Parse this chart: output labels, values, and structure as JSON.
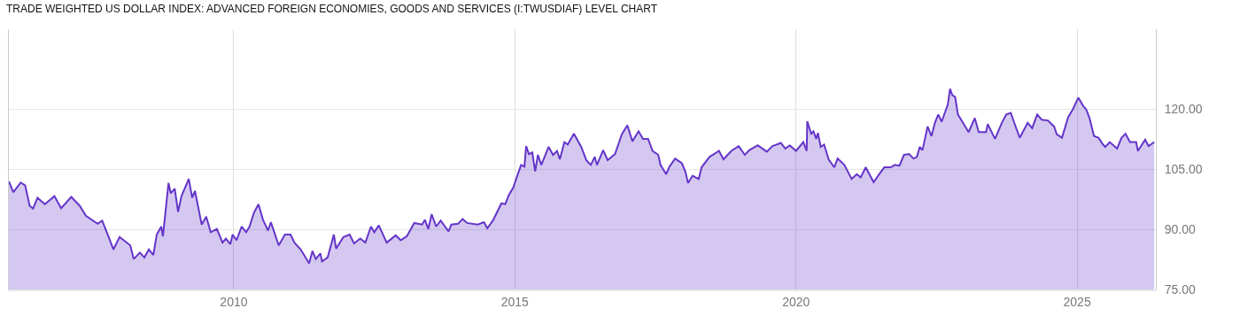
{
  "chart_data": {
    "type": "area",
    "title": "TRADE WEIGHTED US DOLLAR INDEX: ADVANCED FOREIGN ECONOMIES, GOODS AND SERVICES (I:TWUSDIAF) LEVEL CHART",
    "x": [
      2006.0,
      2006.08,
      2006.21,
      2006.29,
      2006.37,
      2006.43,
      2006.51,
      2006.64,
      2006.81,
      2006.93,
      2007.11,
      2007.26,
      2007.37,
      2007.58,
      2007.66,
      2007.77,
      2007.86,
      2007.97,
      2008.16,
      2008.22,
      2008.33,
      2008.41,
      2008.49,
      2008.57,
      2008.63,
      2008.71,
      2008.74,
      2008.84,
      2008.88,
      2008.95,
      2009.01,
      2009.07,
      2009.2,
      2009.26,
      2009.31,
      2009.43,
      2009.51,
      2009.59,
      2009.7,
      2009.8,
      2009.86,
      2009.94,
      2009.98,
      2010.05,
      2010.14,
      2010.22,
      2010.28,
      2010.36,
      2010.44,
      2010.52,
      2010.61,
      2010.66,
      2010.8,
      2010.91,
      2011.01,
      2011.08,
      2011.19,
      2011.34,
      2011.4,
      2011.46,
      2011.54,
      2011.57,
      2011.67,
      2011.78,
      2011.82,
      2011.95,
      2012.06,
      2012.14,
      2012.25,
      2012.34,
      2012.44,
      2012.5,
      2012.58,
      2012.72,
      2012.88,
      2012.97,
      2013.08,
      2013.21,
      2013.35,
      2013.4,
      2013.46,
      2013.52,
      2013.6,
      2013.68,
      2013.82,
      2013.87,
      2013.99,
      2014.07,
      2014.15,
      2014.34,
      2014.45,
      2014.51,
      2014.61,
      2014.7,
      2014.76,
      2014.83,
      2014.89,
      2014.97,
      2015.05,
      2015.11,
      2015.17,
      2015.2,
      2015.25,
      2015.31,
      2015.36,
      2015.41,
      2015.47,
      2015.6,
      2015.68,
      2015.75,
      2015.8,
      2015.88,
      2015.94,
      2016.05,
      2016.18,
      2016.27,
      2016.35,
      2016.42,
      2016.46,
      2016.57,
      2016.65,
      2016.78,
      2016.84,
      2016.9,
      2017.0,
      2017.09,
      2017.2,
      2017.28,
      2017.37,
      2017.45,
      2017.55,
      2017.59,
      2017.69,
      2017.75,
      2017.85,
      2017.97,
      2018.03,
      2018.08,
      2018.16,
      2018.27,
      2018.32,
      2018.46,
      2018.54,
      2018.63,
      2018.71,
      2018.85,
      2018.98,
      2019.09,
      2019.17,
      2019.32,
      2019.48,
      2019.58,
      2019.73,
      2019.81,
      2019.89,
      2020.0,
      2020.13,
      2020.19,
      2020.2,
      2020.27,
      2020.31,
      2020.36,
      2020.39,
      2020.44,
      2020.5,
      2020.58,
      2020.68,
      2020.74,
      2020.86,
      2020.99,
      2021.08,
      2021.15,
      2021.24,
      2021.38,
      2021.49,
      2021.57,
      2021.68,
      2021.76,
      2021.84,
      2021.92,
      2022.01,
      2022.09,
      2022.15,
      2022.2,
      2022.25,
      2022.34,
      2022.41,
      2022.47,
      2022.53,
      2022.59,
      2022.7,
      2022.74,
      2022.78,
      2022.83,
      2022.88,
      2022.97,
      2023.07,
      2023.18,
      2023.25,
      2023.38,
      2023.41,
      2023.54,
      2023.66,
      2023.74,
      2023.82,
      2023.9,
      2023.98,
      2024.12,
      2024.2,
      2024.29,
      2024.37,
      2024.48,
      2024.59,
      2024.64,
      2024.73,
      2024.84,
      2024.92,
      2025.02,
      2025.11,
      2025.16,
      2025.22,
      2025.3,
      2025.38,
      2025.46,
      2025.5,
      2025.58,
      2025.71,
      2025.79,
      2025.86,
      2025.94,
      2026.05,
      2026.08,
      2026.21,
      2026.27,
      2026.37
    ],
    "series": [
      {
        "color": "#6435c9",
        "values": [
          102.0,
          99.3,
          101.7,
          101.0,
          95.9,
          95.2,
          97.9,
          96.3,
          98.3,
          95.3,
          98.1,
          95.9,
          93.4,
          91.4,
          92.2,
          88.3,
          85.0,
          88.1,
          86.0,
          82.6,
          84.2,
          83.0,
          85.0,
          83.6,
          88.7,
          90.7,
          88.3,
          101.6,
          99.0,
          100.2,
          94.4,
          98.3,
          102.6,
          97.9,
          99.6,
          91.2,
          93.2,
          89.3,
          90.1,
          86.7,
          87.7,
          86.3,
          88.7,
          87.3,
          90.7,
          89.3,
          90.7,
          94.2,
          96.3,
          92.4,
          89.7,
          91.8,
          86.0,
          88.7,
          88.7,
          86.7,
          85.0,
          81.5,
          84.6,
          82.6,
          84.0,
          82.0,
          83.0,
          88.7,
          85.2,
          88.1,
          88.7,
          86.5,
          87.7,
          86.7,
          90.7,
          89.3,
          91.0,
          86.7,
          88.5,
          87.3,
          88.3,
          91.6,
          91.2,
          92.4,
          90.1,
          93.8,
          90.7,
          92.2,
          89.5,
          91.2,
          91.4,
          92.6,
          91.6,
          91.2,
          91.8,
          90.3,
          92.2,
          94.8,
          96.5,
          96.3,
          98.5,
          100.4,
          103.7,
          106.1,
          105.7,
          110.8,
          108.8,
          109.2,
          104.5,
          108.6,
          106.1,
          110.6,
          108.6,
          109.6,
          107.5,
          111.8,
          111.2,
          113.9,
          110.6,
          107.3,
          106.1,
          108.1,
          106.1,
          109.8,
          107.3,
          108.8,
          111.2,
          113.7,
          116.0,
          112.0,
          114.5,
          112.6,
          112.6,
          109.6,
          108.6,
          106.1,
          103.8,
          105.7,
          107.7,
          106.5,
          104.5,
          101.6,
          103.4,
          102.6,
          105.5,
          108.1,
          108.8,
          109.6,
          107.5,
          109.6,
          110.8,
          108.6,
          109.8,
          111.0,
          109.4,
          110.8,
          111.6,
          110.2,
          111.0,
          109.6,
          111.8,
          109.6,
          117.0,
          113.9,
          114.5,
          112.6,
          114.1,
          110.6,
          111.2,
          107.5,
          105.5,
          107.7,
          106.1,
          102.6,
          103.8,
          103.0,
          105.5,
          101.8,
          104.0,
          105.5,
          105.5,
          106.1,
          105.9,
          108.6,
          108.8,
          107.7,
          108.1,
          110.6,
          109.8,
          115.7,
          113.3,
          116.6,
          118.7,
          116.9,
          121.2,
          125.1,
          123.5,
          123.1,
          118.7,
          116.6,
          114.3,
          117.8,
          114.3,
          114.3,
          116.3,
          112.6,
          116.6,
          118.7,
          119.1,
          115.9,
          112.9,
          116.6,
          115.3,
          118.7,
          117.4,
          117.2,
          115.7,
          113.7,
          112.9,
          118.0,
          119.9,
          122.9,
          120.8,
          120.0,
          117.8,
          113.3,
          112.9,
          111.2,
          110.6,
          111.8,
          110.2,
          112.9,
          113.9,
          111.8,
          111.8,
          109.6,
          112.4,
          110.8,
          111.8
        ]
      }
    ],
    "xlim": [
      2006.0,
      2026.4
    ],
    "xticks": [
      2010,
      2015,
      2020,
      2025
    ],
    "ylim": [
      75,
      140
    ],
    "yticks": [
      {
        "value": 75,
        "label": "75.00"
      },
      {
        "value": 90,
        "label": "90.00"
      },
      {
        "value": 105,
        "label": "105.00"
      },
      {
        "value": 120,
        "label": "120.00"
      }
    ],
    "grid": true
  }
}
